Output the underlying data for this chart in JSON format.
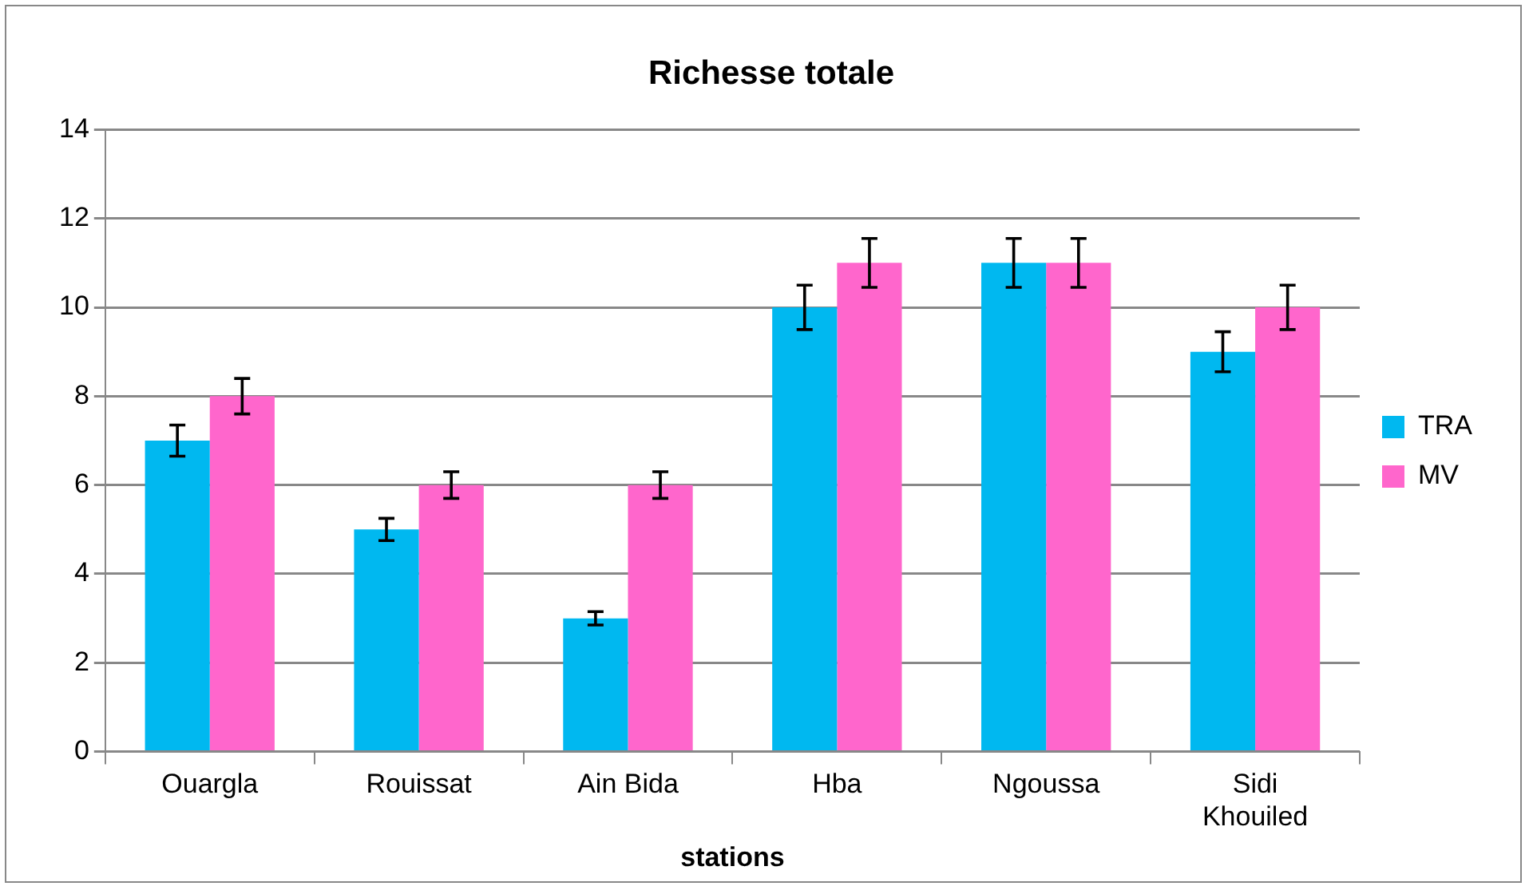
{
  "chart_data": {
    "type": "bar",
    "title": "Richesse totale",
    "xlabel": "stations",
    "categories": [
      "Ouargla",
      "Rouissat",
      "Ain Bida",
      "Hba",
      "Ngoussa",
      "Sidi Khouiled"
    ],
    "series": [
      {
        "name": "TRA",
        "color": "#00b8f0",
        "values": [
          7,
          5,
          3,
          10,
          11,
          9
        ],
        "errors": [
          0.35,
          0.25,
          0.15,
          0.5,
          0.55,
          0.45
        ]
      },
      {
        "name": "MV",
        "color": "#ff66cc",
        "values": [
          8,
          6,
          6,
          11,
          11,
          10
        ],
        "errors": [
          0.4,
          0.3,
          0.3,
          0.55,
          0.55,
          0.5
        ]
      }
    ],
    "ylim": [
      0,
      14
    ],
    "yticks": [
      0,
      2,
      4,
      6,
      8,
      10,
      12,
      14
    ],
    "grid": "y",
    "legend": "right"
  }
}
